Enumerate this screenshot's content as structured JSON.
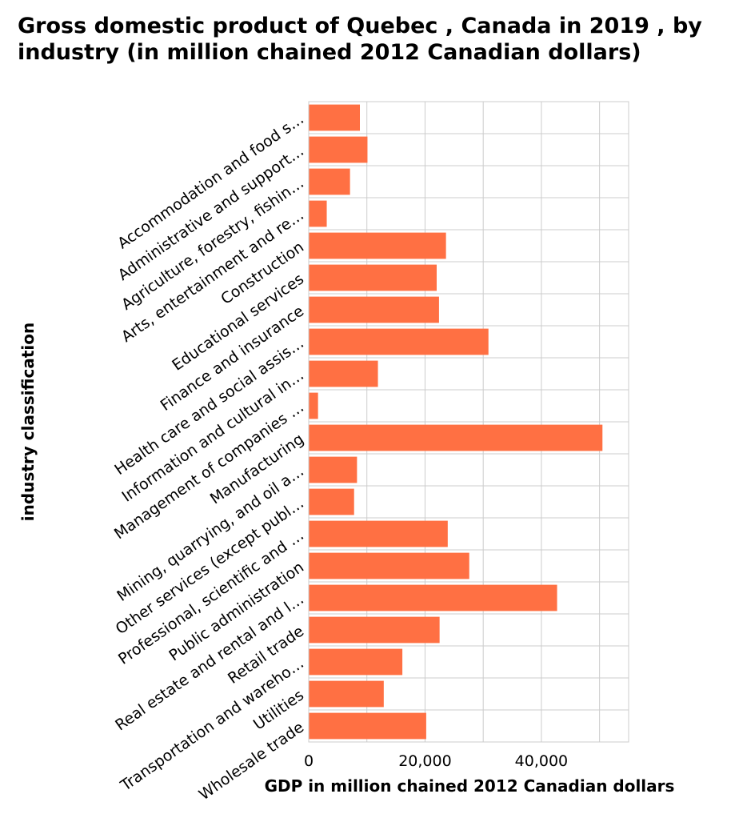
{
  "chart_data": {
    "type": "bar",
    "orientation": "horizontal",
    "title": "Gross domestic product of Quebec , Canada in 2019 , by industry (in million chained 2012 Canadian dollars)",
    "xlabel": "GDP in million chained 2012 Canadian dollars",
    "ylabel": "industry classification",
    "categories": [
      "Accommodation and food s…",
      "Administrative and support…",
      "Agriculture, forestry, fishin…",
      "Arts, entertainment and re…",
      "Construction",
      "Educational services",
      "Finance and insurance",
      "Health care and social assis…",
      "Information and cultural in…",
      "Management of companies …",
      "Manufacturing",
      "Mining, quarrying, and oil a…",
      "Other services (except publ…",
      "Professional, scientific and …",
      "Public administration",
      "Real estate and rental and l…",
      "Retail trade",
      "Transportation and wareho…",
      "Utilities",
      "Wholesale trade"
    ],
    "values": [
      8800,
      10100,
      7100,
      3100,
      23600,
      22000,
      22400,
      30900,
      11900,
      1600,
      50500,
      8300,
      7800,
      23900,
      27600,
      42700,
      22500,
      16100,
      12900,
      20200
    ],
    "xlim": [
      0,
      55000
    ],
    "xticks": [
      0,
      20000,
      40000
    ],
    "xtick_labels": [
      "0",
      "20,000",
      "40,000"
    ],
    "grid": true,
    "bar_color": "#ff7043"
  }
}
